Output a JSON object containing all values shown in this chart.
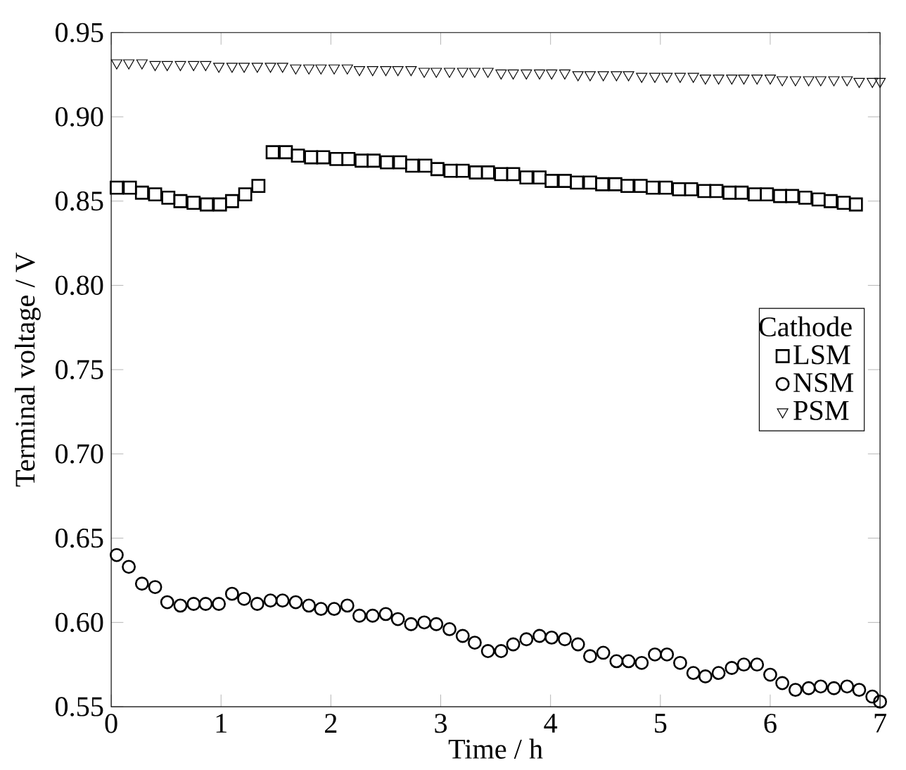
{
  "chart_data": {
    "type": "scatter",
    "xlabel": "Time / h",
    "ylabel": "Terminal voltage / V",
    "legend_title": "Cathode",
    "legend": "right",
    "grid": false,
    "xlim": [
      0,
      7
    ],
    "ylim": [
      0.55,
      0.95
    ],
    "xticks": [
      0,
      1,
      2,
      3,
      4,
      5,
      6,
      7
    ],
    "yticks": [
      0.55,
      {
        "value": 0.6,
        "label": "0.60"
      },
      0.65,
      {
        "value": 0.7,
        "label": "0.70"
      },
      0.75,
      {
        "value": 0.8,
        "label": "0.80"
      },
      0.85,
      {
        "value": 0.9,
        "label": "0.90"
      },
      0.95
    ],
    "series": [
      {
        "name": "LSM",
        "color": "#000000",
        "marker": "square",
        "x": [
          0.05,
          0.17,
          0.28,
          0.4,
          0.52,
          0.63,
          0.75,
          0.87,
          0.99,
          1.1,
          1.22,
          1.34,
          1.47,
          1.59,
          1.7,
          1.82,
          1.93,
          2.05,
          2.16,
          2.28,
          2.39,
          2.51,
          2.63,
          2.74,
          2.86,
          2.97,
          3.09,
          3.2,
          3.32,
          3.43,
          3.55,
          3.66,
          3.78,
          3.9,
          4.01,
          4.13,
          4.24,
          4.36,
          4.47,
          4.59,
          4.7,
          4.82,
          4.93,
          5.05,
          5.17,
          5.28,
          5.4,
          5.51,
          5.63,
          5.74,
          5.86,
          5.97,
          6.09,
          6.2,
          6.32,
          6.44,
          6.55,
          6.67,
          6.78
        ],
        "values": [
          0.858,
          0.858,
          0.855,
          0.854,
          0.852,
          0.85,
          0.849,
          0.848,
          0.848,
          0.85,
          0.854,
          0.859,
          0.879,
          0.879,
          0.877,
          0.876,
          0.876,
          0.875,
          0.875,
          0.874,
          0.874,
          0.873,
          0.873,
          0.871,
          0.871,
          0.869,
          0.868,
          0.868,
          0.867,
          0.867,
          0.866,
          0.866,
          0.864,
          0.864,
          0.862,
          0.862,
          0.861,
          0.861,
          0.86,
          0.86,
          0.859,
          0.859,
          0.858,
          0.858,
          0.857,
          0.857,
          0.856,
          0.856,
          0.855,
          0.855,
          0.854,
          0.854,
          0.853,
          0.853,
          0.852,
          0.851,
          0.85,
          0.849,
          0.848
        ]
      },
      {
        "name": "NSM",
        "color": "#000000",
        "marker": "circle",
        "x": [
          0.05,
          0.16,
          0.28,
          0.4,
          0.51,
          0.63,
          0.75,
          0.86,
          0.98,
          1.1,
          1.21,
          1.33,
          1.45,
          1.56,
          1.68,
          1.8,
          1.91,
          2.03,
          2.15,
          2.26,
          2.38,
          2.5,
          2.61,
          2.73,
          2.85,
          2.96,
          3.08,
          3.2,
          3.31,
          3.43,
          3.55,
          3.66,
          3.78,
          3.9,
          4.01,
          4.13,
          4.25,
          4.36,
          4.48,
          4.6,
          4.71,
          4.83,
          4.95,
          5.06,
          5.18,
          5.3,
          5.41,
          5.53,
          5.65,
          5.76,
          5.88,
          6.0,
          6.11,
          6.23,
          6.35,
          6.46,
          6.58,
          6.7,
          6.81,
          6.93,
          7.0
        ],
        "values": [
          0.64,
          0.633,
          0.623,
          0.621,
          0.612,
          0.61,
          0.611,
          0.611,
          0.611,
          0.617,
          0.614,
          0.611,
          0.613,
          0.613,
          0.612,
          0.61,
          0.608,
          0.608,
          0.61,
          0.604,
          0.604,
          0.605,
          0.602,
          0.599,
          0.6,
          0.599,
          0.596,
          0.592,
          0.588,
          0.583,
          0.583,
          0.587,
          0.59,
          0.592,
          0.591,
          0.59,
          0.587,
          0.58,
          0.582,
          0.577,
          0.577,
          0.576,
          0.581,
          0.581,
          0.576,
          0.57,
          0.568,
          0.57,
          0.573,
          0.575,
          0.575,
          0.569,
          0.564,
          0.56,
          0.561,
          0.562,
          0.561,
          0.562,
          0.56,
          0.556,
          0.553
        ]
      },
      {
        "name": "PSM",
        "color": "#000000",
        "marker": "triangle",
        "x": [
          0.05,
          0.16,
          0.28,
          0.4,
          0.51,
          0.63,
          0.75,
          0.86,
          0.98,
          1.1,
          1.21,
          1.33,
          1.45,
          1.56,
          1.68,
          1.8,
          1.91,
          2.03,
          2.15,
          2.26,
          2.38,
          2.5,
          2.61,
          2.73,
          2.85,
          2.96,
          3.08,
          3.2,
          3.31,
          3.43,
          3.55,
          3.66,
          3.78,
          3.9,
          4.01,
          4.13,
          4.25,
          4.36,
          4.48,
          4.6,
          4.71,
          4.83,
          4.95,
          5.06,
          5.18,
          5.3,
          5.41,
          5.53,
          5.65,
          5.76,
          5.88,
          6.0,
          6.11,
          6.23,
          6.35,
          6.46,
          6.58,
          6.7,
          6.81,
          6.93,
          7.0
        ],
        "values": [
          0.932,
          0.932,
          0.932,
          0.931,
          0.931,
          0.931,
          0.931,
          0.931,
          0.93,
          0.93,
          0.93,
          0.93,
          0.93,
          0.93,
          0.929,
          0.929,
          0.929,
          0.929,
          0.929,
          0.928,
          0.928,
          0.928,
          0.928,
          0.928,
          0.927,
          0.927,
          0.927,
          0.927,
          0.927,
          0.927,
          0.926,
          0.926,
          0.926,
          0.926,
          0.926,
          0.926,
          0.925,
          0.925,
          0.925,
          0.925,
          0.925,
          0.924,
          0.924,
          0.924,
          0.924,
          0.924,
          0.923,
          0.923,
          0.923,
          0.923,
          0.923,
          0.923,
          0.922,
          0.922,
          0.922,
          0.922,
          0.922,
          0.922,
          0.921,
          0.921,
          0.921
        ]
      }
    ]
  }
}
